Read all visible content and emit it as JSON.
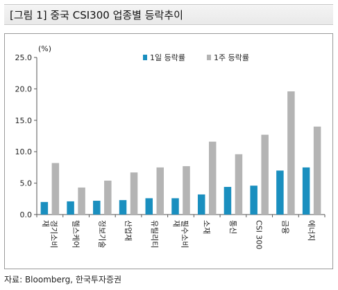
{
  "figure_title": "[그림 1] 중국 CSI300 업종별 등락추이",
  "source_note": "자료: Bloomberg, 한국투자증권",
  "colors": {
    "day1": "#1a8fbf",
    "week1": "#b4b4b4",
    "axis": "#555555"
  },
  "chart_data": {
    "type": "bar",
    "unit_label": "(%)",
    "categories": [
      "경기소비재",
      "헬스케어",
      "정보기술",
      "산업재",
      "유틸리티",
      "필수소비재",
      "소재",
      "통신",
      "CSI 300",
      "금융",
      "에너지"
    ],
    "category_display": [
      [
        "경기소비",
        "재"
      ],
      [
        "헬스케어"
      ],
      [
        "정보기술"
      ],
      [
        "산업재"
      ],
      [
        "유틸리티"
      ],
      [
        "필수소비",
        "재"
      ],
      [
        "소재"
      ],
      [
        "통신"
      ],
      [
        "CSI 300"
      ],
      [
        "금융"
      ],
      [
        "에너지"
      ]
    ],
    "series": [
      {
        "name": "1일 등락률",
        "values": [
          2.0,
          2.1,
          2.2,
          2.3,
          2.6,
          2.6,
          3.2,
          4.4,
          4.6,
          7.0,
          7.5
        ]
      },
      {
        "name": "1주 등락률",
        "values": [
          8.2,
          4.3,
          5.4,
          6.7,
          7.5,
          7.7,
          11.6,
          9.6,
          12.7,
          19.6,
          14.0
        ]
      }
    ],
    "ylim": [
      0,
      25
    ],
    "yticks": [
      "0.0",
      "5.0",
      "10.0",
      "15.0",
      "20.0",
      "25.0"
    ],
    "grid": false,
    "legend_position": "top-center"
  }
}
